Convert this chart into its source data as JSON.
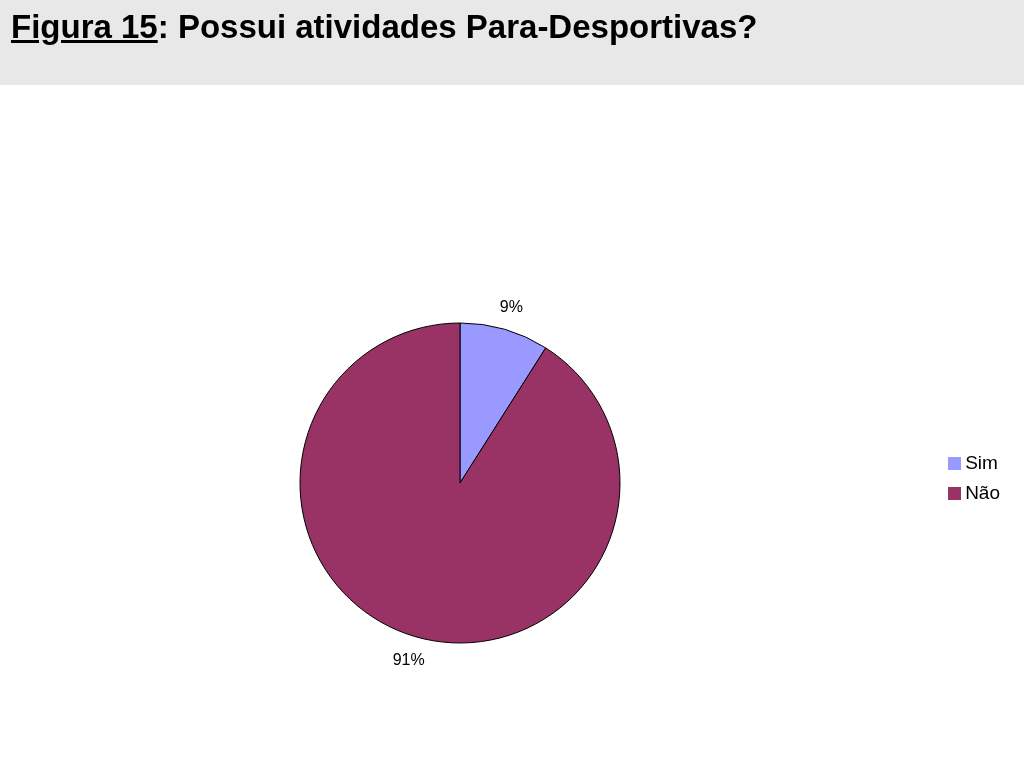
{
  "chart_data": {
    "type": "pie",
    "title": "Figura 15: Possui atividades Para-Desportivas?",
    "categories": [
      "Sim",
      "Não"
    ],
    "values": [
      9,
      91
    ],
    "colors": [
      "#9999ff",
      "#993366"
    ],
    "value_labels": [
      "9%",
      "91%"
    ],
    "legend": "right"
  }
}
